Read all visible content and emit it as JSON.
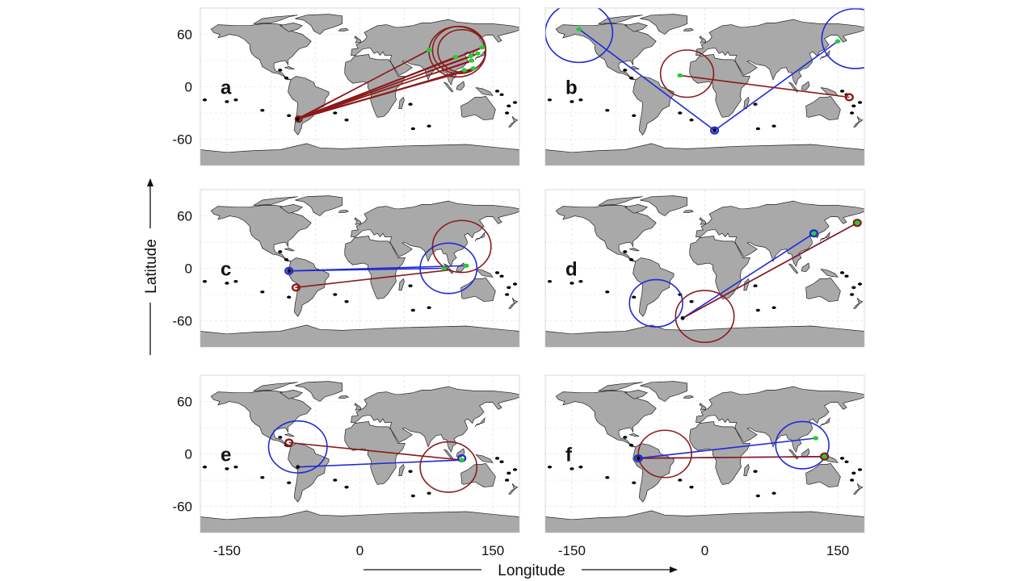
{
  "chart_data": {
    "type": "map",
    "xlabel": "Longitude",
    "ylabel": "Latitude",
    "xlim": [
      -180,
      180
    ],
    "ylim": [
      -90,
      90
    ],
    "x_ticks": [
      -150,
      0,
      150
    ],
    "y_ticks": [
      60,
      0,
      -60
    ],
    "colors": {
      "red": "#8b1a1a",
      "blue": "#1f2ad6",
      "green": "#22cc33",
      "land": "#a9a9a9",
      "dots": "#000000"
    },
    "panels": [
      {
        "label": "a",
        "source": [
          -70,
          -37
        ],
        "targets": [
          [
            78,
            42
          ],
          [
            108,
            34
          ],
          [
            125,
            35
          ],
          [
            133,
            38
          ],
          [
            138,
            45
          ],
          [
            126,
            30
          ],
          [
            128,
            21
          ],
          [
            118,
            19
          ]
        ],
        "line_color": "red",
        "circles": [
          {
            "center": [
              110,
              40
            ],
            "radius": 32,
            "color": "red"
          },
          {
            "center": [
              112,
              42
            ],
            "radius": 30,
            "color": "red"
          },
          {
            "center": [
              115,
              41
            ],
            "radius": 27,
            "color": "red"
          },
          {
            "center": [
              -69,
              -37
            ],
            "radius": 3.5,
            "color": "red"
          }
        ]
      },
      {
        "label": "b",
        "source": [
          11,
          -50
        ],
        "targets": [
          [
            -142,
            66
          ],
          [
            150,
            52
          ]
        ],
        "line_color": "blue",
        "extra_line": {
          "from": [
            -28,
            13
          ],
          "to": [
            163,
            -12
          ],
          "color": "red"
        },
        "circles": [
          {
            "center": [
              -142,
              62
            ],
            "radius": 38,
            "color": "blue"
          },
          {
            "center": [
              170,
              55
            ],
            "radius": 38,
            "color": "blue"
          },
          {
            "center": [
              -20,
              15
            ],
            "radius": 30,
            "color": "red"
          },
          {
            "center": [
              163,
              -12
            ],
            "radius": 4,
            "color": "red"
          },
          {
            "center": [
              11,
              -50
            ],
            "radius": 4,
            "color": "blue"
          }
        ]
      },
      {
        "label": "c",
        "source": [
          -80,
          -3
        ],
        "targets": [
          [
            95,
            0
          ],
          [
            120,
            3
          ]
        ],
        "line_color": "blue",
        "extra_line": {
          "from": [
            -73,
            -22
          ],
          "to": [
            100,
            -2
          ],
          "color": "red"
        },
        "circles": [
          {
            "center": [
              -80,
              -3
            ],
            "radius": 4,
            "color": "blue"
          },
          {
            "center": [
              -72,
              -22
            ],
            "radius": 4,
            "color": "red"
          },
          {
            "center": [
              115,
              25
            ],
            "radius": 33,
            "color": "red"
          },
          {
            "center": [
              100,
              0
            ],
            "radius": 32,
            "color": "blue"
          }
        ]
      },
      {
        "label": "d",
        "source": [
          -25,
          -57
        ],
        "targets": [
          [
            123,
            40
          ],
          [
            172,
            52
          ]
        ],
        "line_color": "blue",
        "extra_line": {
          "from": [
            -25,
            -57
          ],
          "to": [
            172,
            52
          ],
          "color": "red"
        },
        "circles": [
          {
            "center": [
              -55,
              -40
            ],
            "radius": 30,
            "color": "blue"
          },
          {
            "center": [
              0,
              -55
            ],
            "radius": 33,
            "color": "red"
          },
          {
            "center": [
              123,
              40
            ],
            "radius": 4,
            "color": "blue"
          },
          {
            "center": [
              172,
              52
            ],
            "radius": 4,
            "color": "red"
          }
        ]
      },
      {
        "label": "e",
        "source": [
          -70,
          -15
        ],
        "targets": [
          [
            115,
            -7
          ]
        ],
        "line_color": "blue",
        "extra_line": {
          "from": [
            -80,
            13
          ],
          "to": [
            115,
            -7
          ],
          "color": "red"
        },
        "circles": [
          {
            "center": [
              -70,
              8
            ],
            "radius": 33,
            "color": "blue"
          },
          {
            "center": [
              -80,
              13
            ],
            "radius": 4,
            "color": "red"
          },
          {
            "center": [
              100,
              -15
            ],
            "radius": 32,
            "color": "red"
          },
          {
            "center": [
              115,
              -5
            ],
            "radius": 4,
            "color": "blue"
          }
        ]
      },
      {
        "label": "f",
        "source": [
          -75,
          -5
        ],
        "targets": [
          [
            125,
            18
          ],
          [
            135,
            -3
          ]
        ],
        "line_color": "blue",
        "extra_line": {
          "from": [
            -75,
            -5
          ],
          "to": [
            135,
            -3
          ],
          "color": "red"
        },
        "circles": [
          {
            "center": [
              -45,
              0
            ],
            "radius": 30,
            "color": "red"
          },
          {
            "center": [
              110,
              10
            ],
            "radius": 30,
            "color": "blue"
          },
          {
            "center": [
              -75,
              -5
            ],
            "radius": 4,
            "color": "blue"
          },
          {
            "center": [
              135,
              -3
            ],
            "radius": 4,
            "color": "red"
          }
        ]
      }
    ]
  }
}
